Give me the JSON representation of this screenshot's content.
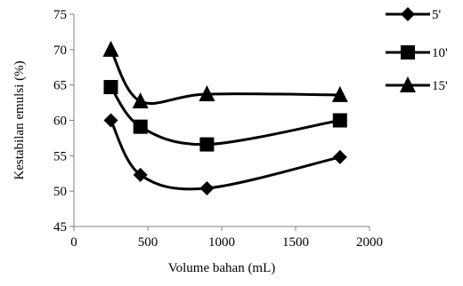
{
  "chart_data": {
    "type": "line",
    "title": "",
    "xlabel": "Volume bahan (mL)",
    "ylabel": "Kestabilan emulsi (%)",
    "xlim": [
      0,
      2000
    ],
    "ylim": [
      45,
      75
    ],
    "xticks": [
      0,
      500,
      1000,
      1500,
      2000
    ],
    "yticks": [
      45,
      50,
      55,
      60,
      65,
      70,
      75
    ],
    "grid": false,
    "legend_position": "right",
    "smooth": true,
    "series": [
      {
        "name": "5'",
        "marker": "diamond",
        "x": [
          250,
          450,
          900,
          1800
        ],
        "y": [
          60.0,
          52.3,
          50.4,
          54.8
        ]
      },
      {
        "name": "10'",
        "marker": "square",
        "x": [
          250,
          450,
          900,
          1800
        ],
        "y": [
          64.7,
          59.1,
          56.6,
          60.0
        ]
      },
      {
        "name": "15'",
        "marker": "triangle",
        "x": [
          250,
          450,
          900,
          1800
        ],
        "y": [
          70.0,
          62.7,
          63.7,
          63.6
        ]
      }
    ],
    "line_color": "#000000"
  }
}
